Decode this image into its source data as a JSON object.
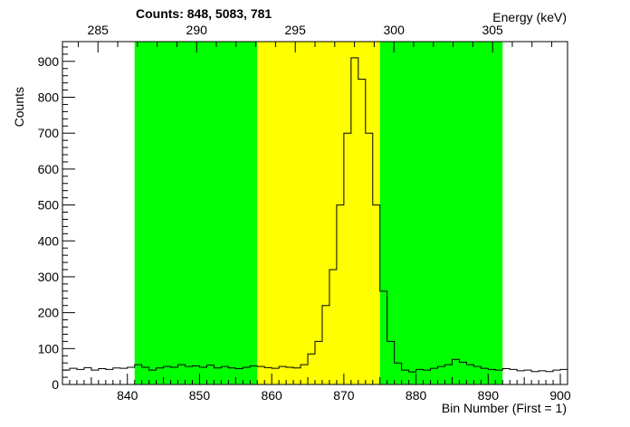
{
  "chart_data": {
    "type": "histogram",
    "title": "Counts:   848,   5083,   781",
    "xlabel": "Bin Number (First = 1)",
    "ylabel": "Counts",
    "x2label": "Energy (keV)",
    "xlim": [
      831,
      901
    ],
    "ylim": [
      0,
      955
    ],
    "x_ticks": [
      840,
      850,
      860,
      870,
      880,
      890,
      900
    ],
    "y_ticks": [
      0,
      100,
      200,
      300,
      400,
      500,
      600,
      700,
      800,
      900
    ],
    "energy_ticks": [
      285,
      290,
      295,
      300,
      305
    ],
    "energy_axis": {
      "bin_ref1": 831,
      "keV_ref1": 283.2,
      "bin_ref2": 901,
      "keV_ref2": 308.8
    },
    "regions": [
      {
        "from": 841,
        "to": 858,
        "color": "#00ff00"
      },
      {
        "from": 858,
        "to": 875,
        "color": "#ffff00"
      },
      {
        "from": 875,
        "to": 892,
        "color": "#00ff00"
      }
    ],
    "bin_start": 831,
    "bin_width": 1,
    "values": [
      40,
      45,
      42,
      47,
      40,
      44,
      42,
      46,
      45,
      48,
      55,
      48,
      40,
      46,
      50,
      48,
      55,
      50,
      52,
      48,
      54,
      46,
      50,
      46,
      44,
      48,
      52,
      50,
      47,
      45,
      50,
      48,
      46,
      55,
      85,
      120,
      220,
      320,
      500,
      700,
      910,
      850,
      700,
      500,
      260,
      120,
      60,
      40,
      35,
      42,
      40,
      45,
      50,
      55,
      70,
      62,
      55,
      50,
      45,
      42,
      40,
      44,
      42,
      38,
      40,
      36,
      38,
      36,
      40,
      42
    ],
    "line_color": "#000000"
  }
}
